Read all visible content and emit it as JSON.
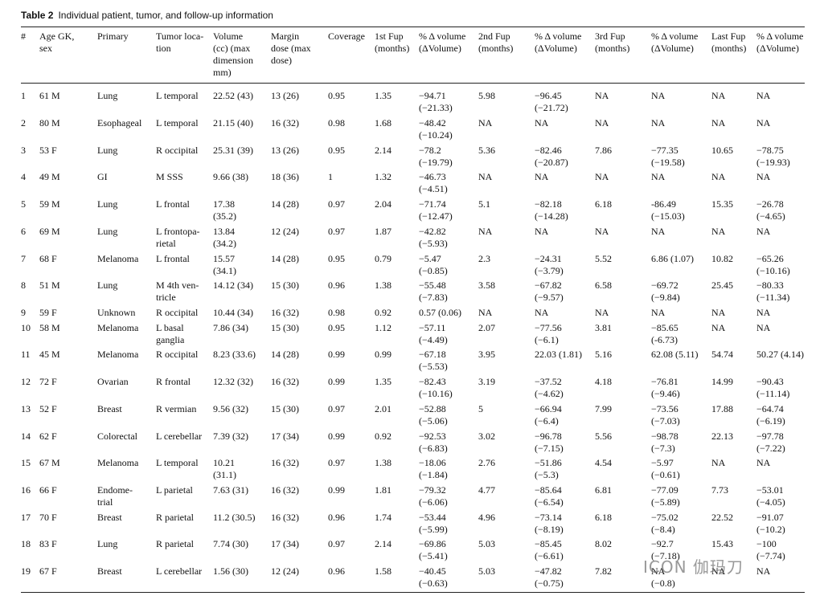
{
  "caption": {
    "label": "Table 2",
    "text": "Individual patient, tumor, and follow-up information"
  },
  "columns": [
    "#",
    "Age GK, sex",
    "Primary",
    "Tumor location",
    "Volume (cc) (max dimension mm)",
    "Margin dose (max dose)",
    "Coverage",
    "1st Fup (months)",
    "% Δ volume (ΔVolume)",
    "2nd Fup (months)",
    "% Δ volume (ΔVolume)",
    "3rd Fup (months)",
    "% Δ volume (ΔVolume)",
    "Last Fup (months)",
    "% Δ volume (ΔVolume)"
  ],
  "header_lines": [
    [
      "#"
    ],
    [
      "Age GK,",
      "sex"
    ],
    [
      "Primary"
    ],
    [
      "Tumor loca-",
      "tion"
    ],
    [
      "Volume",
      "(cc) (max",
      "dimension",
      "mm)"
    ],
    [
      "Margin",
      "dose (max",
      "dose)"
    ],
    [
      "Coverage"
    ],
    [
      "1st Fup",
      "(months)"
    ],
    [
      "% Δ volume",
      "(ΔVolume)"
    ],
    [
      "2nd Fup",
      "(months)"
    ],
    [
      "% Δ volume",
      "(ΔVolume)"
    ],
    [
      "3rd Fup",
      "(months)"
    ],
    [
      "% Δ volume",
      "(ΔVolume)"
    ],
    [
      "Last Fup",
      "(months)"
    ],
    [
      "% Δ volume",
      "(ΔVolume)"
    ]
  ],
  "rows": [
    [
      [
        "1"
      ],
      [
        "61 M"
      ],
      [
        "Lung"
      ],
      [
        "L temporal"
      ],
      [
        "22.52 (43)"
      ],
      [
        "13 (26)"
      ],
      [
        "0.95"
      ],
      [
        "1.35"
      ],
      [
        "−94.71",
        "(−21.33)"
      ],
      [
        "5.98"
      ],
      [
        "−96.45",
        "(−21.72)"
      ],
      [
        "NA"
      ],
      [
        "NA"
      ],
      [
        "NA"
      ],
      [
        "NA"
      ]
    ],
    [
      [
        "2"
      ],
      [
        "80 M"
      ],
      [
        "Esophageal"
      ],
      [
        "L temporal"
      ],
      [
        "21.15 (40)"
      ],
      [
        "16 (32)"
      ],
      [
        "0.98"
      ],
      [
        "1.68"
      ],
      [
        "−48.42",
        "(−10.24)"
      ],
      [
        "NA"
      ],
      [
        "NA"
      ],
      [
        "NA"
      ],
      [
        "NA"
      ],
      [
        "NA"
      ],
      [
        "NA"
      ]
    ],
    [
      [
        "3"
      ],
      [
        "53 F"
      ],
      [
        "Lung"
      ],
      [
        "R occipital"
      ],
      [
        "25.31 (39)"
      ],
      [
        "13 (26)"
      ],
      [
        "0.95"
      ],
      [
        "2.14"
      ],
      [
        "−78.2",
        "(−19.79)"
      ],
      [
        "5.36"
      ],
      [
        "−82.46",
        "(−20.87)"
      ],
      [
        "7.86"
      ],
      [
        "−77.35",
        "(−19.58)"
      ],
      [
        "10.65"
      ],
      [
        "−78.75",
        "(−19.93)"
      ]
    ],
    [
      [
        "4"
      ],
      [
        "49 M"
      ],
      [
        "GI"
      ],
      [
        "M SSS"
      ],
      [
        "9.66 (38)"
      ],
      [
        "18 (36)"
      ],
      [
        "1"
      ],
      [
        "1.32"
      ],
      [
        "−46.73",
        "(−4.51)"
      ],
      [
        "NA"
      ],
      [
        "NA"
      ],
      [
        "NA"
      ],
      [
        "NA"
      ],
      [
        "NA"
      ],
      [
        "NA"
      ]
    ],
    [
      [
        "5"
      ],
      [
        "59 M"
      ],
      [
        "Lung"
      ],
      [
        "L frontal"
      ],
      [
        "17.38",
        "(35.2)"
      ],
      [
        "14 (28)"
      ],
      [
        "0.97"
      ],
      [
        "2.04"
      ],
      [
        "−71.74",
        "(−12.47)"
      ],
      [
        "5.1"
      ],
      [
        "−82.18",
        "(−14.28)"
      ],
      [
        "6.18"
      ],
      [
        "-86.49",
        "(−15.03)"
      ],
      [
        "15.35"
      ],
      [
        "−26.78",
        "(−4.65)"
      ]
    ],
    [
      [
        "6"
      ],
      [
        "69 M"
      ],
      [
        "Lung"
      ],
      [
        "L frontopa-",
        "rietal"
      ],
      [
        "13.84",
        "(34.2)"
      ],
      [
        "12 (24)"
      ],
      [
        "0.97"
      ],
      [
        "1.87"
      ],
      [
        "−42.82",
        "(−5.93)"
      ],
      [
        "NA"
      ],
      [
        "NA"
      ],
      [
        "NA"
      ],
      [
        "NA"
      ],
      [
        "NA"
      ],
      [
        "NA"
      ]
    ],
    [
      [
        "7"
      ],
      [
        "68 F"
      ],
      [
        "Melanoma"
      ],
      [
        "L frontal"
      ],
      [
        "15.57",
        "(34.1)"
      ],
      [
        "14 (28)"
      ],
      [
        "0.95"
      ],
      [
        "0.79"
      ],
      [
        "−5.47",
        "(−0.85)"
      ],
      [
        "2.3"
      ],
      [
        "−24.31",
        "(−3.79)"
      ],
      [
        "5.52"
      ],
      [
        "6.86 (1.07)"
      ],
      [
        "10.82"
      ],
      [
        "−65.26",
        "(−10.16)"
      ]
    ],
    [
      [
        "8"
      ],
      [
        "51 M"
      ],
      [
        "Lung"
      ],
      [
        "M 4th ven-",
        "tricle"
      ],
      [
        "14.12 (34)"
      ],
      [
        "15 (30)"
      ],
      [
        "0.96"
      ],
      [
        "1.38"
      ],
      [
        "−55.48",
        "(−7.83)"
      ],
      [
        "3.58"
      ],
      [
        "−67.82",
        "(−9.57)"
      ],
      [
        "6.58"
      ],
      [
        "−69.72",
        "(−9.84)"
      ],
      [
        "25.45"
      ],
      [
        "−80.33",
        "(−11.34)"
      ]
    ],
    [
      [
        "9"
      ],
      [
        "59 F"
      ],
      [
        "Unknown"
      ],
      [
        "R occipital"
      ],
      [
        "10.44 (34)"
      ],
      [
        "16 (32)"
      ],
      [
        "0.98"
      ],
      [
        "0.92"
      ],
      [
        "0.57 (0.06)"
      ],
      [
        "NA"
      ],
      [
        "NA"
      ],
      [
        "NA"
      ],
      [
        "NA"
      ],
      [
        "NA"
      ],
      [
        "NA"
      ]
    ],
    [
      [
        "10"
      ],
      [
        "58 M"
      ],
      [
        "Melanoma"
      ],
      [
        "L basal",
        "ganglia"
      ],
      [
        "7.86 (34)"
      ],
      [
        "15 (30)"
      ],
      [
        "0.95"
      ],
      [
        "1.12"
      ],
      [
        "−57.11",
        "(−4.49)"
      ],
      [
        "2.07"
      ],
      [
        "−77.56",
        "(−6.1)"
      ],
      [
        "3.81"
      ],
      [
        "−85.65",
        "(-6.73)"
      ],
      [
        "NA"
      ],
      [
        "NA"
      ]
    ],
    [
      [
        "11"
      ],
      [
        "45 M"
      ],
      [
        "Melanoma"
      ],
      [
        "R occipital"
      ],
      [
        "8.23 (33.6)"
      ],
      [
        "14 (28)"
      ],
      [
        "0.99"
      ],
      [
        "0.99"
      ],
      [
        "−67.18",
        "(−5.53)"
      ],
      [
        "3.95"
      ],
      [
        "22.03 (1.81)"
      ],
      [
        "5.16"
      ],
      [
        "62.08 (5.11)"
      ],
      [
        "54.74"
      ],
      [
        "50.27 (4.14)"
      ]
    ],
    [
      [
        "12"
      ],
      [
        "72 F"
      ],
      [
        "Ovarian"
      ],
      [
        "R frontal"
      ],
      [
        "12.32 (32)"
      ],
      [
        "16 (32)"
      ],
      [
        "0.99"
      ],
      [
        "1.35"
      ],
      [
        "−82.43",
        "(−10.16)"
      ],
      [
        "3.19"
      ],
      [
        "−37.52",
        "(−4.62)"
      ],
      [
        "4.18"
      ],
      [
        "−76.81",
        "(−9.46)"
      ],
      [
        "14.99"
      ],
      [
        "−90.43",
        "(−11.14)"
      ]
    ],
    [
      [
        "13"
      ],
      [
        "52 F"
      ],
      [
        "Breast"
      ],
      [
        "R vermian"
      ],
      [
        "9.56 (32)"
      ],
      [
        "15 (30)"
      ],
      [
        "0.97"
      ],
      [
        "2.01"
      ],
      [
        "−52.88",
        "(−5.06)"
      ],
      [
        "5"
      ],
      [
        "−66.94",
        "(−6.4)"
      ],
      [
        "7.99"
      ],
      [
        "−73.56",
        "(−7.03)"
      ],
      [
        "17.88"
      ],
      [
        "−64.74",
        "(−6.19)"
      ]
    ],
    [
      [
        "14"
      ],
      [
        "62 F"
      ],
      [
        "Colorectal"
      ],
      [
        "L cerebellar"
      ],
      [
        "7.39 (32)"
      ],
      [
        "17 (34)"
      ],
      [
        "0.99"
      ],
      [
        "0.92"
      ],
      [
        "−92.53",
        "(−6.83)"
      ],
      [
        "3.02"
      ],
      [
        "−96.78",
        "(−7.15)"
      ],
      [
        "5.56"
      ],
      [
        "−98.78",
        "(−7.3)"
      ],
      [
        "22.13"
      ],
      [
        "−97.78",
        "(−7.22)"
      ]
    ],
    [
      [
        "15"
      ],
      [
        "67 M"
      ],
      [
        "Melanoma"
      ],
      [
        "L temporal"
      ],
      [
        "10.21",
        "(31.1)"
      ],
      [
        "16 (32)"
      ],
      [
        "0.97"
      ],
      [
        "1.38"
      ],
      [
        "−18.06",
        "(−1.84)"
      ],
      [
        "2.76"
      ],
      [
        "−51.86",
        "(−5.3)"
      ],
      [
        "4.54"
      ],
      [
        "−5.97",
        "(−0.61)"
      ],
      [
        "NA"
      ],
      [
        "NA"
      ]
    ],
    [
      [
        "16"
      ],
      [
        "66 F"
      ],
      [
        "Endome-",
        "trial"
      ],
      [
        "L parietal"
      ],
      [
        "7.63 (31)"
      ],
      [
        "16 (32)"
      ],
      [
        "0.99"
      ],
      [
        "1.81"
      ],
      [
        "−79.32",
        "(−6.06)"
      ],
      [
        "4.77"
      ],
      [
        "−85.64",
        "(−6.54)"
      ],
      [
        "6.81"
      ],
      [
        "−77.09",
        "(−5.89)"
      ],
      [
        "7.73"
      ],
      [
        "−53.01",
        "(−4.05)"
      ]
    ],
    [
      [
        "17"
      ],
      [
        "70 F"
      ],
      [
        "Breast"
      ],
      [
        "R parietal"
      ],
      [
        "11.2 (30.5)"
      ],
      [
        "16 (32)"
      ],
      [
        "0.96"
      ],
      [
        "1.74"
      ],
      [
        "−53.44",
        "(−5.99)"
      ],
      [
        "4.96"
      ],
      [
        "−73.14",
        "(−8.19)"
      ],
      [
        "6.18"
      ],
      [
        "−75.02",
        "(−8.4)"
      ],
      [
        "22.52"
      ],
      [
        "−91.07",
        "(−10.2)"
      ]
    ],
    [
      [
        "18"
      ],
      [
        "83 F"
      ],
      [
        "Lung"
      ],
      [
        "R parietal"
      ],
      [
        "7.74 (30)"
      ],
      [
        "17 (34)"
      ],
      [
        "0.97"
      ],
      [
        "2.14"
      ],
      [
        "−69.86",
        "(−5.41)"
      ],
      [
        "5.03"
      ],
      [
        "−85.45",
        "(−6.61)"
      ],
      [
        "8.02"
      ],
      [
        "−92.7",
        "(−7.18)"
      ],
      [
        "15.43"
      ],
      [
        "−100",
        "(−7.74)"
      ]
    ],
    [
      [
        "19"
      ],
      [
        "67 F"
      ],
      [
        "Breast"
      ],
      [
        "L cerebellar"
      ],
      [
        "1.56 (30)"
      ],
      [
        "12 (24)"
      ],
      [
        "0.96"
      ],
      [
        "1.58"
      ],
      [
        "−40.45",
        "(−0.63)"
      ],
      [
        "5.03"
      ],
      [
        "−47.82",
        "(−0.75)"
      ],
      [
        "7.82"
      ],
      [
        "NA",
        "(−0.8)"
      ],
      [
        "NA"
      ],
      [
        "NA"
      ]
    ]
  ],
  "watermark": "ICON 伽玛刀"
}
